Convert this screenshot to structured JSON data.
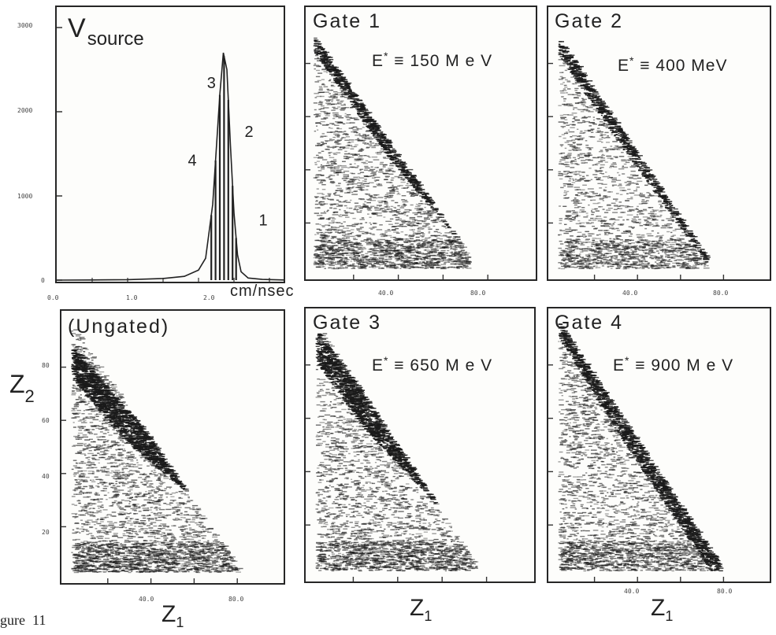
{
  "figure_caption": "gure  11",
  "chart_data": [
    {
      "type": "line",
      "panel": "vsource",
      "title": "V",
      "title_subscript": "source",
      "xlabel": "cm/nsec",
      "x_tick_labels": [
        "0.0",
        "1.0",
        "2.0"
      ],
      "y_tick_labels": [
        "3000",
        "2000",
        "1000",
        "0"
      ],
      "ylim": [
        0,
        3000
      ],
      "curve_x": [
        0.0,
        0.5,
        1.0,
        1.5,
        1.8,
        2.0,
        2.1,
        2.2,
        2.3,
        2.35,
        2.4,
        2.45,
        2.5,
        2.55,
        2.6,
        2.7,
        2.9,
        3.2
      ],
      "curve_y": [
        0,
        2,
        6,
        20,
        45,
        120,
        260,
        900,
        2200,
        2700,
        2500,
        1600,
        800,
        300,
        100,
        25,
        8,
        2
      ],
      "gate_bins_x": [
        2.18,
        2.24,
        2.3,
        2.36,
        2.42,
        2.48,
        2.53
      ],
      "gate_labels": [
        {
          "text": "1",
          "x": 2.85,
          "y": 650
        },
        {
          "text": "2",
          "x": 2.65,
          "y": 1700
        },
        {
          "text": "3",
          "x": 2.12,
          "y": 2280
        },
        {
          "text": "4",
          "x": 1.85,
          "y": 1360
        }
      ]
    },
    {
      "type": "scatter",
      "panel": "gate1",
      "title": "Gate  1",
      "estar": "150 M e V",
      "x_tick_labels": [
        "40.0",
        "80.0"
      ],
      "y_tick_labels": [],
      "xlim": [
        0,
        100
      ],
      "ylim": [
        0,
        100
      ],
      "diagonal_edge": [
        [
          2,
          90
        ],
        [
          72,
          7
        ]
      ],
      "band_ridge": [
        [
          20,
          68
        ],
        [
          35,
          50
        ],
        [
          50,
          35
        ]
      ],
      "band_width": 5,
      "density": 3000
    },
    {
      "type": "scatter",
      "panel": "gate2",
      "title": "Gate  2",
      "estar": "400 MeV",
      "x_tick_labels": [
        "40.0",
        "80.0"
      ],
      "y_tick_labels": [],
      "xlim": [
        0,
        100
      ],
      "ylim": [
        0,
        100
      ],
      "diagonal_edge": [
        [
          3,
          90
        ],
        [
          72,
          7
        ]
      ],
      "band_ridge": [
        [
          15,
          75
        ],
        [
          32,
          55
        ],
        [
          50,
          35
        ]
      ],
      "band_width": 6,
      "density": 2400
    },
    {
      "type": "scatter",
      "panel": "ungated",
      "title": "(Ungated)",
      "ylabel": "Z",
      "ylabel_subscript": "2",
      "xlabel": "Z",
      "xlabel_subscript": "1",
      "x_tick_labels": [
        "40.0",
        "80.0"
      ],
      "y_tick_labels": [
        "80",
        "60",
        "40",
        "20"
      ],
      "xlim": [
        0,
        100
      ],
      "ylim": [
        0,
        100
      ],
      "diagonal_edge": [
        [
          3,
          96
        ],
        [
          80,
          5
        ]
      ],
      "band_ridge": [
        [
          5,
          80
        ],
        [
          28,
          58
        ],
        [
          55,
          40
        ]
      ],
      "band_width": 6,
      "density": 4200
    },
    {
      "type": "scatter",
      "panel": "gate3",
      "title": "Gate  3",
      "estar": "650 M e V",
      "xlabel": "Z",
      "xlabel_subscript": "1",
      "x_tick_labels": [],
      "y_tick_labels": [],
      "xlim": [
        0,
        100
      ],
      "ylim": [
        0,
        100
      ],
      "diagonal_edge": [
        [
          3,
          96
        ],
        [
          75,
          5
        ]
      ],
      "band_ridge": [
        [
          5,
          85
        ],
        [
          25,
          62
        ],
        [
          50,
          40
        ]
      ],
      "band_width": 6,
      "density": 3600
    },
    {
      "type": "scatter",
      "panel": "gate4",
      "title": "Gate  4",
      "estar": "900 M e V",
      "xlabel": "Z",
      "xlabel_subscript": "1",
      "x_tick_labels": [
        "40.0",
        "80.0"
      ],
      "y_tick_labels": [],
      "xlim": [
        0,
        100
      ],
      "ylim": [
        0,
        100
      ],
      "diagonal_edge": [
        [
          3,
          96
        ],
        [
          78,
          5
        ]
      ],
      "band_ridge": [
        [
          8,
          90
        ],
        [
          35,
          55
        ],
        [
          60,
          25
        ]
      ],
      "band_width": 6,
      "density": 3600
    }
  ]
}
